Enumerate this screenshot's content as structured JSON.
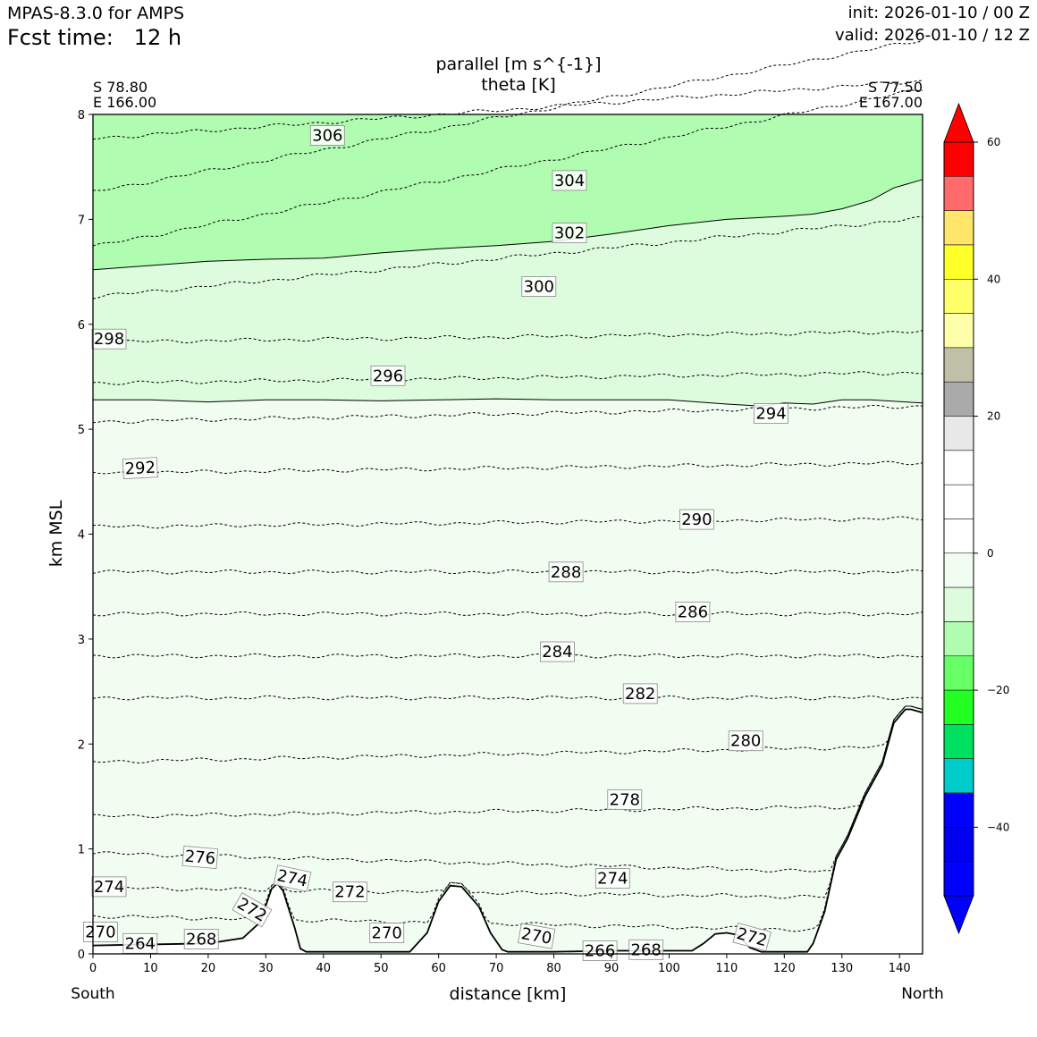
{
  "header": {
    "model_title": "MPAS-8.3.0 for AMPS",
    "fcst_label": "Fcst time:",
    "fcst_value": "12 h",
    "init": "init: 2026-01-10 / 00 Z",
    "valid": "valid: 2026-01-10 / 12 Z"
  },
  "colors": {
    "terrain": "#ffffff",
    "fill_lightest": "#f0fdf0",
    "fill_light": "#ddfcdd",
    "fill_mid": "#b0fcb0"
  },
  "chart_data": {
    "type": "contour-cross-section",
    "title_line1": "parallel [m s^{-1}]",
    "title_line2": "theta [K]",
    "start_point": {
      "lat": "S 78.80",
      "lon": "E 166.00"
    },
    "end_point": {
      "lat": "S 77.50",
      "lon": "E 167.00"
    },
    "xlabel": "distance [km]",
    "ylabel": "km MSL",
    "x_left_label": "South",
    "x_right_label": "North",
    "xlim": [
      0,
      144
    ],
    "ylim": [
      0,
      8
    ],
    "xticks": [
      0,
      10,
      20,
      30,
      40,
      50,
      60,
      70,
      80,
      90,
      100,
      110,
      120,
      130,
      140
    ],
    "yticks": [
      0,
      1,
      2,
      3,
      4,
      5,
      6,
      7,
      8
    ],
    "terrain": [
      [
        0,
        0.08
      ],
      [
        20,
        0.1
      ],
      [
        26,
        0.15
      ],
      [
        29,
        0.3
      ],
      [
        31,
        0.62
      ],
      [
        32,
        0.67
      ],
      [
        33,
        0.6
      ],
      [
        35,
        0.25
      ],
      [
        36,
        0.05
      ],
      [
        37,
        0.02
      ],
      [
        45,
        0.02
      ],
      [
        55,
        0.02
      ],
      [
        58,
        0.2
      ],
      [
        60,
        0.5
      ],
      [
        62,
        0.65
      ],
      [
        64,
        0.64
      ],
      [
        67,
        0.45
      ],
      [
        69,
        0.2
      ],
      [
        71,
        0.04
      ],
      [
        72,
        0.02
      ],
      [
        80,
        0.02
      ],
      [
        90,
        0.03
      ],
      [
        104,
        0.03
      ],
      [
        106,
        0.1
      ],
      [
        108,
        0.19
      ],
      [
        110,
        0.2
      ],
      [
        112,
        0.18
      ],
      [
        114,
        0.06
      ],
      [
        116,
        0.02
      ],
      [
        124,
        0.02
      ],
      [
        125,
        0.1
      ],
      [
        127,
        0.4
      ],
      [
        129,
        0.9
      ],
      [
        131,
        1.1
      ],
      [
        134,
        1.5
      ],
      [
        137,
        1.8
      ],
      [
        139,
        2.2
      ],
      [
        141,
        2.33
      ],
      [
        142,
        2.33
      ],
      [
        143.9,
        2.3
      ]
    ],
    "wind_boundaries": [
      {
        "level": -20,
        "points": [
          [
            0,
            6.52
          ],
          [
            10,
            6.56
          ],
          [
            20,
            6.6
          ],
          [
            30,
            6.62
          ],
          [
            40,
            6.63
          ],
          [
            50,
            6.68
          ],
          [
            60,
            6.72
          ],
          [
            70,
            6.75
          ],
          [
            80,
            6.79
          ],
          [
            90,
            6.86
          ],
          [
            100,
            6.94
          ],
          [
            110,
            7.0
          ],
          [
            120,
            7.03
          ],
          [
            125,
            7.05
          ],
          [
            130,
            7.1
          ],
          [
            135,
            7.18
          ],
          [
            139,
            7.3
          ],
          [
            144,
            7.38
          ]
        ]
      },
      {
        "level": -10,
        "points": [
          [
            0,
            5.28
          ],
          [
            10,
            5.28
          ],
          [
            20,
            5.26
          ],
          [
            30,
            5.28
          ],
          [
            40,
            5.28
          ],
          [
            50,
            5.27
          ],
          [
            60,
            5.28
          ],
          [
            70,
            5.29
          ],
          [
            80,
            5.28
          ],
          [
            90,
            5.28
          ],
          [
            100,
            5.28
          ],
          [
            110,
            5.24
          ],
          [
            116,
            5.22
          ],
          [
            120,
            5.25
          ],
          [
            125,
            5.24
          ],
          [
            130,
            5.28
          ],
          [
            135,
            5.28
          ],
          [
            144,
            5.25
          ]
        ]
      }
    ],
    "wind_colorbar": {
      "ticks": [
        60,
        40,
        20,
        0,
        -20,
        -40
      ],
      "bins": [
        {
          "from": 55,
          "to": 60,
          "color": "#ff0000"
        },
        {
          "from": 50,
          "to": 55,
          "color": "#ff6a6a"
        },
        {
          "from": 45,
          "to": 50,
          "color": "#ffe66a"
        },
        {
          "from": 40,
          "to": 45,
          "color": "#ffff2a"
        },
        {
          "from": 35,
          "to": 40,
          "color": "#ffff6a"
        },
        {
          "from": 30,
          "to": 35,
          "color": "#ffffaa"
        },
        {
          "from": 25,
          "to": 30,
          "color": "#c0c0a8"
        },
        {
          "from": 20,
          "to": 25,
          "color": "#aaaaaa"
        },
        {
          "from": 15,
          "to": 20,
          "color": "#e8e8e8"
        },
        {
          "from": 10,
          "to": 15,
          "color": "#ffffff"
        },
        {
          "from": 5,
          "to": 10,
          "color": "#ffffff"
        },
        {
          "from": 0,
          "to": 5,
          "color": "#ffffff"
        },
        {
          "from": -5,
          "to": 0,
          "color": "#f0fdf0"
        },
        {
          "from": -10,
          "to": -5,
          "color": "#ddfcdd"
        },
        {
          "from": -15,
          "to": -10,
          "color": "#b0fcb0"
        },
        {
          "from": -20,
          "to": -15,
          "color": "#66ff66"
        },
        {
          "from": -25,
          "to": -20,
          "color": "#22ff22"
        },
        {
          "from": -30,
          "to": -25,
          "color": "#00e060"
        },
        {
          "from": -35,
          "to": -30,
          "color": "#00cccc"
        },
        {
          "from": -40,
          "to": -35,
          "color": "#0000ff"
        },
        {
          "from": -45,
          "to": -40,
          "color": "#0000ee"
        },
        {
          "from": -50,
          "to": -45,
          "color": "#0000ff"
        }
      ],
      "top_arrow_color": "#ff0000",
      "bottom_arrow_color": "#0000ff"
    },
    "theta_contours": [
      {
        "value": 306,
        "y": 7.77,
        "slope": 0.55
      },
      {
        "value": 304,
        "y": 7.26,
        "slope": 1.45
      },
      {
        "value": 302,
        "y": 6.74,
        "slope": 1.5
      },
      {
        "value": 300,
        "y": 6.26,
        "slope": 0.75
      },
      {
        "value": 298,
        "y": 5.83,
        "slope": 0.1
      },
      {
        "value": 296,
        "y": 5.44,
        "slope": 0.1
      },
      {
        "value": 294,
        "y": 5.07,
        "slope": 0.15
      },
      {
        "value": 292,
        "y": 4.58,
        "slope": 0.1
      },
      {
        "value": 290,
        "y": 4.07,
        "slope": 0.08
      },
      {
        "value": 288,
        "y": 3.64,
        "slope": 0.0
      },
      {
        "value": 286,
        "y": 3.24,
        "slope": 0.0
      },
      {
        "value": 284,
        "y": 2.84,
        "slope": 0.0
      },
      {
        "value": 282,
        "y": 2.44,
        "slope": 0.0
      },
      {
        "value": 280,
        "y": 1.83,
        "slope": 0.15
      },
      {
        "value": 278,
        "y": 1.31,
        "slope": 0.1
      },
      {
        "value": 276,
        "y": 0.96,
        "slope": -0.2
      },
      {
        "value": 274,
        "y": 0.63,
        "slope": -0.1
      },
      {
        "value": 272,
        "y": 0.36,
        "slope": -0.15
      }
    ],
    "theta_labels": [
      {
        "text": "306",
        "x": 40.7,
        "y": 7.8,
        "rot": 0
      },
      {
        "text": "304",
        "x": 82.7,
        "y": 7.37,
        "rot": 0
      },
      {
        "text": "302",
        "x": 82.7,
        "y": 6.87,
        "rot": 0
      },
      {
        "text": "300",
        "x": 77.4,
        "y": 6.36,
        "rot": 0
      },
      {
        "text": "298",
        "x": 2.8,
        "y": 5.86,
        "rot": 0
      },
      {
        "text": "296",
        "x": 51.2,
        "y": 5.51,
        "rot": 0
      },
      {
        "text": "294",
        "x": 117.7,
        "y": 5.15,
        "rot": 0
      },
      {
        "text": "292",
        "x": 8.2,
        "y": 4.63,
        "rot": -3
      },
      {
        "text": "290",
        "x": 104.8,
        "y": 4.14,
        "rot": 0
      },
      {
        "text": "288",
        "x": 82.1,
        "y": 3.64,
        "rot": 0
      },
      {
        "text": "286",
        "x": 104.1,
        "y": 3.26,
        "rot": 0
      },
      {
        "text": "284",
        "x": 80.6,
        "y": 2.88,
        "rot": 0
      },
      {
        "text": "282",
        "x": 95.0,
        "y": 2.48,
        "rot": 0
      },
      {
        "text": "280",
        "x": 113.3,
        "y": 2.03,
        "rot": 0
      },
      {
        "text": "278",
        "x": 92.3,
        "y": 1.47,
        "rot": 0
      },
      {
        "text": "276",
        "x": 18.6,
        "y": 0.92,
        "rot": 5
      },
      {
        "text": "274",
        "x": 34.6,
        "y": 0.72,
        "rot": 12
      },
      {
        "text": "274",
        "x": 2.8,
        "y": 0.64,
        "rot": 0
      },
      {
        "text": "272",
        "x": 44.6,
        "y": 0.59,
        "rot": 0
      },
      {
        "text": "274",
        "x": 90.2,
        "y": 0.72,
        "rot": 0
      },
      {
        "text": "272",
        "x": 27.6,
        "y": 0.42,
        "rot": 30
      },
      {
        "text": "270",
        "x": 1.3,
        "y": 0.21,
        "rot": 0
      },
      {
        "text": "264",
        "x": 8.2,
        "y": 0.1,
        "rot": 0
      },
      {
        "text": "268",
        "x": 18.8,
        "y": 0.14,
        "rot": 0
      },
      {
        "text": "270",
        "x": 51.0,
        "y": 0.2,
        "rot": 0
      },
      {
        "text": "270",
        "x": 77.0,
        "y": 0.17,
        "rot": 10
      },
      {
        "text": "266",
        "x": 88.0,
        "y": 0.03,
        "rot": 0
      },
      {
        "text": "268",
        "x": 96.0,
        "y": 0.04,
        "rot": 0
      },
      {
        "text": "272",
        "x": 114.4,
        "y": 0.16,
        "rot": 15
      }
    ]
  }
}
